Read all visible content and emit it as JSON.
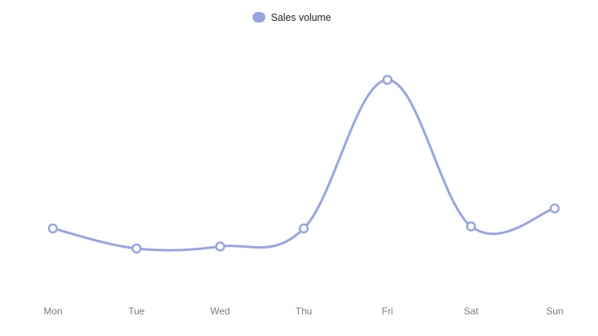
{
  "chart_data": {
    "type": "line",
    "smooth": true,
    "categories": [
      "Mon",
      "Tue",
      "Wed",
      "Thu",
      "Fri",
      "Sat",
      "Sun"
    ],
    "series": [
      {
        "name": "Sales volume",
        "values": [
          820,
          720,
          730,
          820,
          1560,
          830,
          920
        ],
        "color": "#96a4e6"
      }
    ],
    "ylim": [
      500,
      1750
    ],
    "grid": false,
    "legend": "top-center",
    "marker": "hollow-circle"
  }
}
